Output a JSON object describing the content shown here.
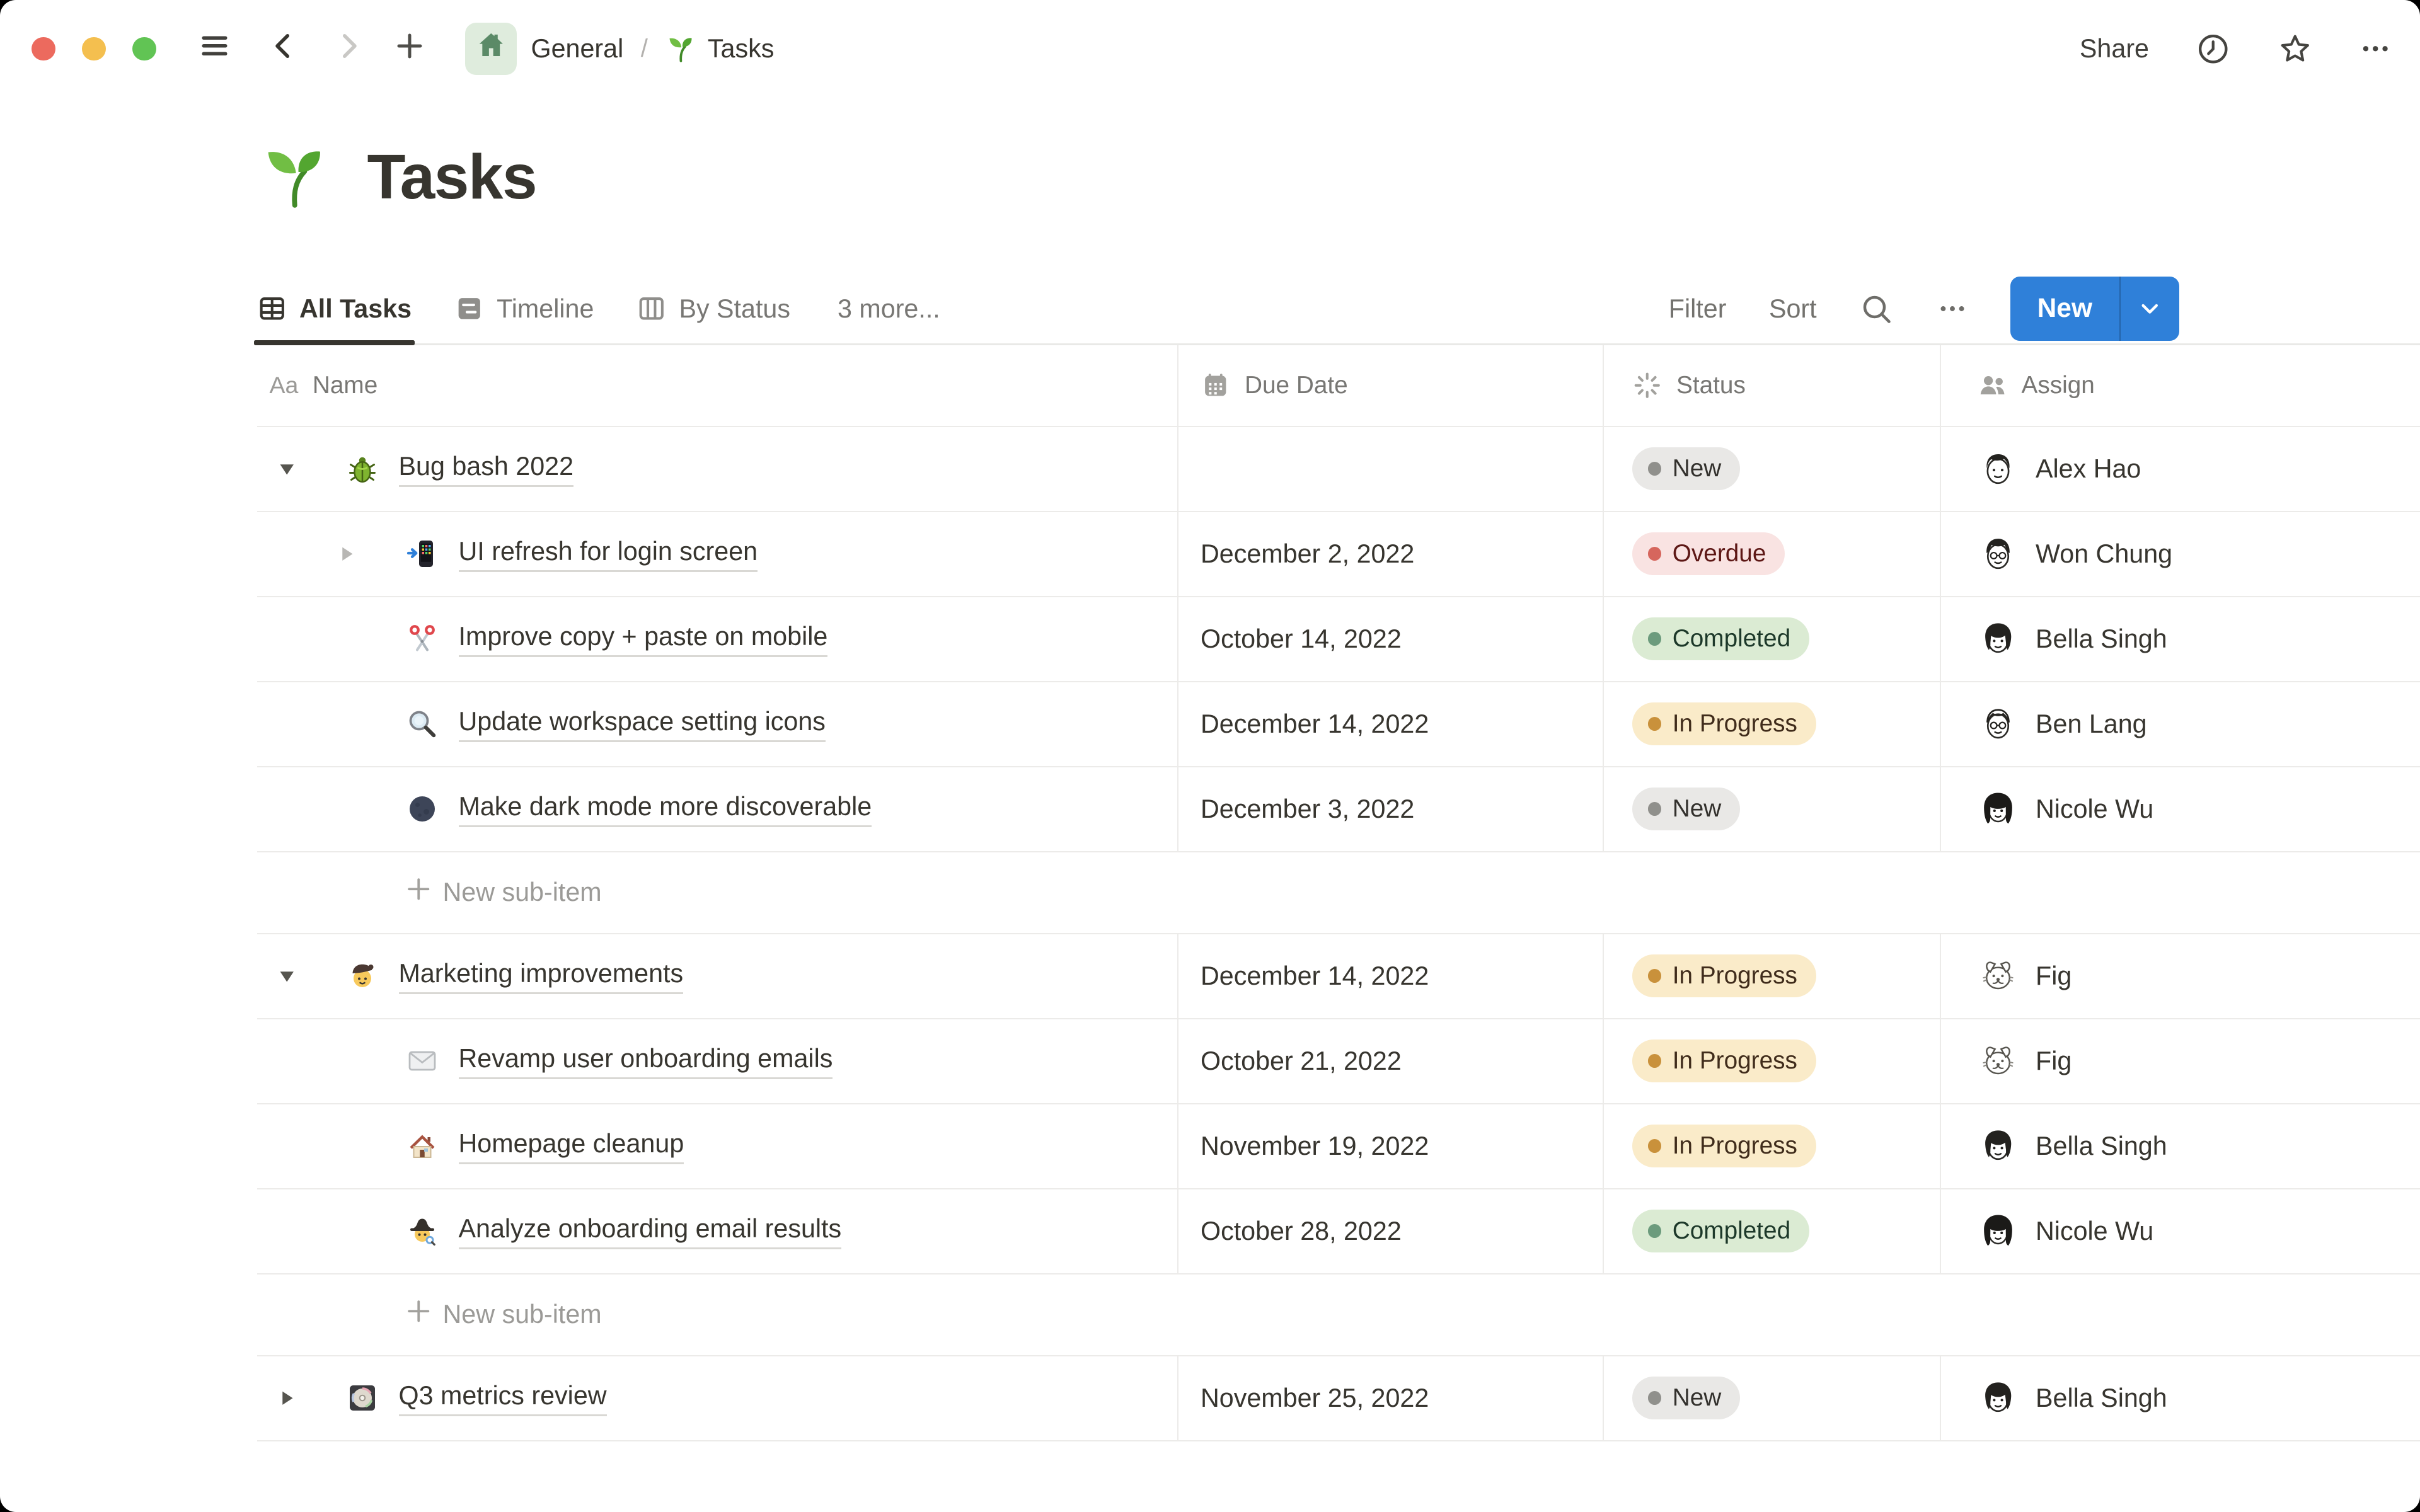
{
  "window": {
    "breadcrumb": {
      "space": "General",
      "separator": "/",
      "page": "Tasks"
    },
    "share_label": "Share"
  },
  "page": {
    "title": "Tasks",
    "icon": "seedling-icon"
  },
  "views": {
    "tabs": [
      {
        "label": "All Tasks",
        "icon": "table-view-icon",
        "active": true
      },
      {
        "label": "Timeline",
        "icon": "timeline-view-icon",
        "active": false
      },
      {
        "label": "By Status",
        "icon": "board-view-icon",
        "active": false
      }
    ],
    "more_label": "3 more...",
    "controls": {
      "filter": "Filter",
      "sort": "Sort",
      "new_label": "New",
      "new_button_color": "#2F80D9"
    }
  },
  "table": {
    "columns": [
      {
        "label": "Name",
        "icon": "text-icon"
      },
      {
        "label": "Due Date",
        "icon": "calendar-icon"
      },
      {
        "label": "Status",
        "icon": "status-spinner-icon"
      },
      {
        "label": "Assign",
        "icon": "people-icon"
      }
    ],
    "new_sub_item_label": "New sub-item",
    "status_styles": {
      "New": {
        "bg": "#E9E8E6",
        "dot": "#90908C",
        "text": "#32302C"
      },
      "Overdue": {
        "bg": "#F9E3E2",
        "dot": "#D6665D",
        "text": "#5D1715"
      },
      "Completed": {
        "bg": "#DBEBD3",
        "dot": "#6C9B7D",
        "text": "#1C3829"
      },
      "In Progress": {
        "bg": "#FAEBC9",
        "dot": "#C9913B",
        "text": "#402C1B"
      }
    },
    "rows": [
      {
        "type": "task",
        "level": 0,
        "toggle": "expanded",
        "icon": "beetle-icon",
        "name": "Bug bash 2022",
        "due": "",
        "status": "New",
        "assignee": "Alex Hao",
        "avatar": "man-spiky"
      },
      {
        "type": "task",
        "level": 1,
        "toggle": "collapsed-sub",
        "icon": "phone-arrow-icon",
        "name": "UI refresh for login screen",
        "due": "December 2, 2022",
        "status": "Overdue",
        "assignee": "Won Chung",
        "avatar": "man-bowl"
      },
      {
        "type": "task",
        "level": 1,
        "toggle": "none",
        "icon": "scissors-icon",
        "name": "Improve copy + paste on mobile",
        "due": "October 14, 2022",
        "status": "Completed",
        "assignee": "Bella Singh",
        "avatar": "woman-bob"
      },
      {
        "type": "task",
        "level": 1,
        "toggle": "none",
        "icon": "magnifier-icon",
        "name": "Update workspace setting icons",
        "due": "December 14, 2022",
        "status": "In Progress",
        "assignee": "Ben Lang",
        "avatar": "man-glasses"
      },
      {
        "type": "task",
        "level": 1,
        "toggle": "none",
        "icon": "new-moon-icon",
        "name": "Make dark mode more discoverable",
        "due": "December 3, 2022",
        "status": "New",
        "assignee": "Nicole Wu",
        "avatar": "woman-long"
      },
      {
        "type": "new-sub-item"
      },
      {
        "type": "task",
        "level": 0,
        "toggle": "expanded",
        "icon": "artist-icon",
        "name": "Marketing improvements",
        "due": "December 14, 2022",
        "status": "In Progress",
        "assignee": "Fig",
        "avatar": "dog"
      },
      {
        "type": "task",
        "level": 1,
        "toggle": "none",
        "icon": "envelope-icon",
        "name": "Revamp user onboarding emails",
        "due": "October 21, 2022",
        "status": "In Progress",
        "assignee": "Fig",
        "avatar": "dog"
      },
      {
        "type": "task",
        "level": 1,
        "toggle": "none",
        "icon": "house-icon",
        "name": "Homepage cleanup",
        "due": "November 19, 2022",
        "status": "In Progress",
        "assignee": "Bella Singh",
        "avatar": "woman-bob"
      },
      {
        "type": "task",
        "level": 1,
        "toggle": "none",
        "icon": "detective-icon",
        "name": "Analyze onboarding email results",
        "due": "October 28, 2022",
        "status": "Completed",
        "assignee": "Nicole Wu",
        "avatar": "woman-long"
      },
      {
        "type": "new-sub-item"
      },
      {
        "type": "task",
        "level": 0,
        "toggle": "collapsed",
        "icon": "minidisc-icon",
        "name": "Q3 metrics review",
        "due": "November 25, 2022",
        "status": "New",
        "assignee": "Bella Singh",
        "avatar": "woman-bob"
      }
    ]
  }
}
